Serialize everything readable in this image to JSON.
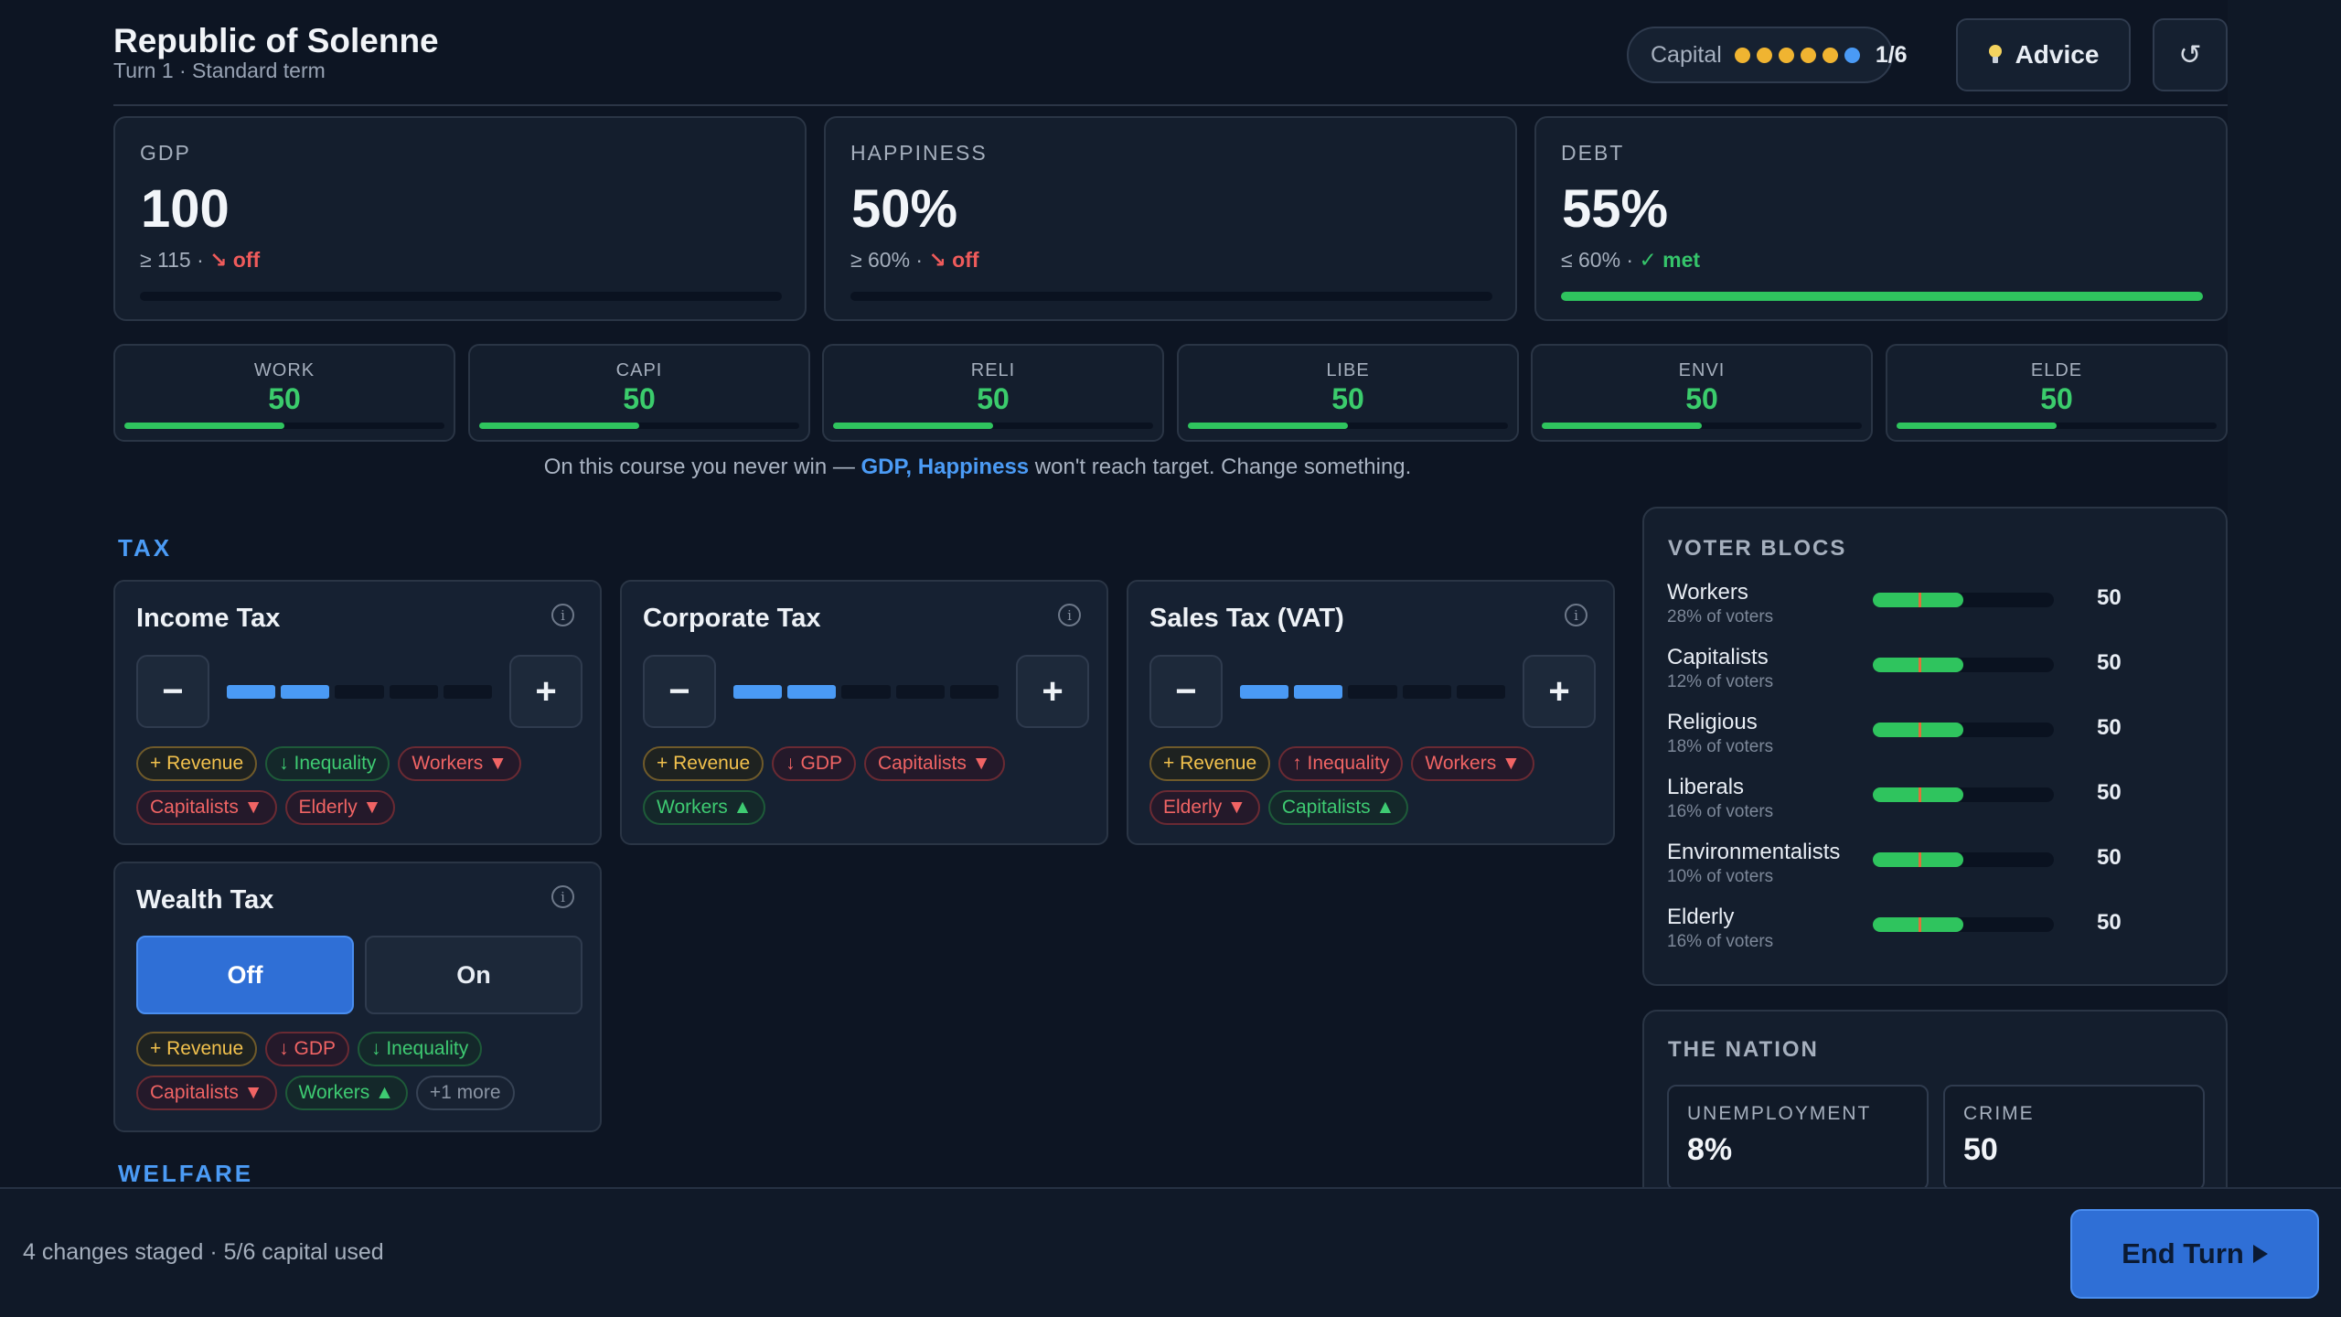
{
  "header": {
    "title": "Republic of Solenne",
    "subtitle": "Turn 1 · Standard term",
    "capital_label": "Capital",
    "capital_count": "1/6",
    "capital_total": 6,
    "capital_used": 5,
    "advice_label": "Advice",
    "reset_glyph": "↺"
  },
  "stats": [
    {
      "label": "GDP",
      "value": "100",
      "target": "≥ 115",
      "sep": " · ",
      "status": "↘ off",
      "status_kind": "off",
      "progress": 0
    },
    {
      "label": "HAPPINESS",
      "value": "50%",
      "target": "≥ 60%",
      "sep": " · ",
      "status": "↘ off",
      "status_kind": "off",
      "progress": 0
    },
    {
      "label": "DEBT",
      "value": "55%",
      "target": "≤ 60%",
      "sep": " · ",
      "status": "✓ met",
      "status_kind": "met",
      "progress": 1
    }
  ],
  "blocs_summary": [
    {
      "label": "WORK",
      "value": "50",
      "progress": 0.5
    },
    {
      "label": "CAPI",
      "value": "50",
      "progress": 0.5
    },
    {
      "label": "RELI",
      "value": "50",
      "progress": 0.5
    },
    {
      "label": "LIBE",
      "value": "50",
      "progress": 0.5
    },
    {
      "label": "ENVI",
      "value": "50",
      "progress": 0.5
    },
    {
      "label": "ELDE",
      "value": "50",
      "progress": 0.5
    }
  ],
  "warning": {
    "prefix": "On this course you never win — ",
    "highlight": "GDP, Happiness",
    "suffix": " won't reach target. Change something."
  },
  "sections": {
    "tax": "TAX",
    "welfare": "WELFARE"
  },
  "policies": {
    "income_tax": {
      "name": "Income Tax",
      "level": 2,
      "levels": 5,
      "chips": [
        {
          "text": "+ Revenue",
          "kind": "y"
        },
        {
          "text": "↓ Inequality",
          "kind": "g"
        },
        {
          "text": "Workers ▼",
          "kind": "r"
        },
        {
          "text": "Capitalists ▼",
          "kind": "r"
        },
        {
          "text": "Elderly ▼",
          "kind": "r"
        }
      ]
    },
    "corporate_tax": {
      "name": "Corporate Tax",
      "level": 2,
      "levels": 5,
      "chips": [
        {
          "text": "+ Revenue",
          "kind": "y"
        },
        {
          "text": "↓ GDP",
          "kind": "r"
        },
        {
          "text": "Capitalists ▼",
          "kind": "r"
        },
        {
          "text": "Workers ▲",
          "kind": "g"
        }
      ]
    },
    "sales_tax": {
      "name": "Sales Tax (VAT)",
      "level": 2,
      "levels": 5,
      "chips": [
        {
          "text": "+ Revenue",
          "kind": "y"
        },
        {
          "text": "↑ Inequality",
          "kind": "r"
        },
        {
          "text": "Workers ▼",
          "kind": "r"
        },
        {
          "text": "Elderly ▼",
          "kind": "r"
        },
        {
          "text": "Capitalists ▲",
          "kind": "g"
        }
      ]
    },
    "wealth_tax": {
      "name": "Wealth Tax",
      "off_label": "Off",
      "on_label": "On",
      "selected": "Off",
      "chips": [
        {
          "text": "+ Revenue",
          "kind": "y"
        },
        {
          "text": "↓ GDP",
          "kind": "r"
        },
        {
          "text": "↓ Inequality",
          "kind": "g"
        },
        {
          "text": "Capitalists ▼",
          "kind": "r"
        },
        {
          "text": "Workers ▲",
          "kind": "g"
        },
        {
          "text": "+1 more",
          "kind": "m"
        }
      ]
    }
  },
  "voter_blocs": {
    "title": "VOTER BLOCS",
    "rows": [
      {
        "name": "Workers",
        "share": "28% of voters",
        "value": "50",
        "progress": 0.5
      },
      {
        "name": "Capitalists",
        "share": "12% of voters",
        "value": "50",
        "progress": 0.5
      },
      {
        "name": "Religious",
        "share": "18% of voters",
        "value": "50",
        "progress": 0.5
      },
      {
        "name": "Liberals",
        "share": "16% of voters",
        "value": "50",
        "progress": 0.5
      },
      {
        "name": "Environmentalists",
        "share": "10% of voters",
        "value": "50",
        "progress": 0.5
      },
      {
        "name": "Elderly",
        "share": "16% of voters",
        "value": "50",
        "progress": 0.5
      }
    ]
  },
  "nation": {
    "title": "THE NATION",
    "unemployment_label": "UNEMPLOYMENT",
    "unemployment_value": "8%",
    "crime_label": "CRIME",
    "crime_value": "50"
  },
  "footer": {
    "status": "4 changes staged · 5/6 capital used",
    "end_turn_label": "End Turn"
  },
  "colors": {
    "accent": "#4a9af5",
    "good": "#2fc45e",
    "bad": "#ef5b5b",
    "capital": "#f0b431"
  }
}
